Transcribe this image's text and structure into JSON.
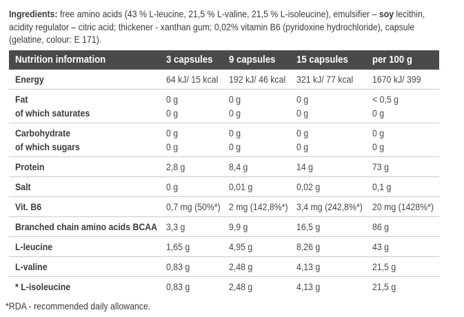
{
  "ingredients": {
    "bold1": "Ingredients:",
    "seg1": " free amino acids (43 % L-leucine, 21,5 % L-valine, 21,5 % L-isoleucine), emulsifier – ",
    "bold2": "soy",
    "seg2": " lecithin,",
    "line2": "acidity regulator – citric acid; thickener - xanthan gum;  0,02% vitamin B6 (pyridoxine hydrochloride), capsule",
    "line3": "(gelatine, colour: E 171)."
  },
  "table": {
    "header": {
      "label": "Nutrition information",
      "col1": "3 capsules",
      "col2": "9 capsules",
      "col3": "15 capsules",
      "col4": "per 100 g"
    },
    "rows": [
      {
        "label": "Energy",
        "values": [
          "64 kJ/ 15 kcal",
          "192 kJ/ 46 kcal",
          "321 kJ/ 77 kcal",
          "1670 kJ/ 399"
        ]
      },
      {
        "label": "Fat",
        "values": [
          "0 g",
          "0 g",
          "0 g",
          "< 0,5 g"
        ]
      },
      {
        "label": "of which saturates",
        "values": [
          "0 g",
          "0 g",
          "0 g",
          "0 g"
        ]
      },
      {
        "label": "Carbohydrate",
        "values": [
          "0 g",
          "0 g",
          "0 g",
          "0 g"
        ]
      },
      {
        "label": "of which sugars",
        "values": [
          "0 g",
          "0 g",
          "0 g",
          "0 g"
        ]
      },
      {
        "label": "Protein",
        "values": [
          "2,8 g",
          "8,4 g",
          "14 g",
          "73 g"
        ]
      },
      {
        "label": "Salt",
        "values": [
          "0 g",
          "0,01 g",
          "0,02 g",
          "0,1 g"
        ]
      },
      {
        "label": "Vit. B6",
        "values": [
          "0,7 mg (50%*)",
          "2 mg (142,8%*)",
          "3,4 mg (242,8%*)",
          "20 mg (1428%*)"
        ]
      },
      {
        "label": "Branched chain amino acids BCAA",
        "values": [
          "3,3 g",
          "9,9 g",
          "16,5 g",
          "86 g"
        ]
      },
      {
        "label": "L-leucine",
        "values": [
          "1,65 g",
          "4,95 g",
          "8,26 g",
          "43 g"
        ]
      },
      {
        "label": "L-valine",
        "values": [
          "0,83 g",
          "2,48 g",
          "4,13 g",
          "21,5 g"
        ]
      },
      {
        "label": "* L-isoleucine",
        "values": [
          "0,83 g",
          "2,48 g",
          "4,13 g",
          "21,5 g"
        ]
      }
    ]
  },
  "footnote": "*RDA - recommended daily allowance.",
  "colors": {
    "header_bg": "#4b4a48",
    "header_text": "#ffffff",
    "divider": "#c9c9c9",
    "label_text": "#3a3a3a",
    "value_text": "#474747",
    "page_bg": "#ffffff"
  }
}
